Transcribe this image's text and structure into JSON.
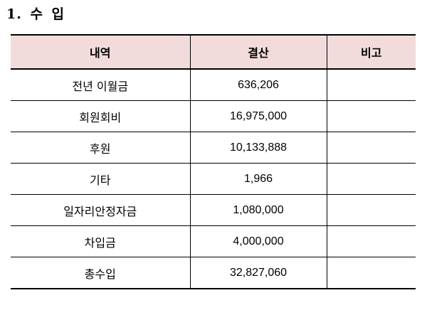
{
  "section": {
    "title": "1. 수 입"
  },
  "table": {
    "headers": [
      "내역",
      "결산",
      "비고"
    ],
    "header_bg": "#f2dcdb",
    "rows": [
      {
        "item": "전년 이월금",
        "amount": "636,206",
        "note": ""
      },
      {
        "item": "회원회비",
        "amount": "16,975,000",
        "note": ""
      },
      {
        "item": "후원",
        "amount": "10,133,888",
        "note": ""
      },
      {
        "item": "기타",
        "amount": "1,966",
        "note": ""
      },
      {
        "item": "일자리안정자금",
        "amount": "1,080,000",
        "note": ""
      },
      {
        "item": "차입금",
        "amount": "4,000,000",
        "note": ""
      },
      {
        "item": "총수입",
        "amount": "32,827,060",
        "note": ""
      }
    ]
  }
}
